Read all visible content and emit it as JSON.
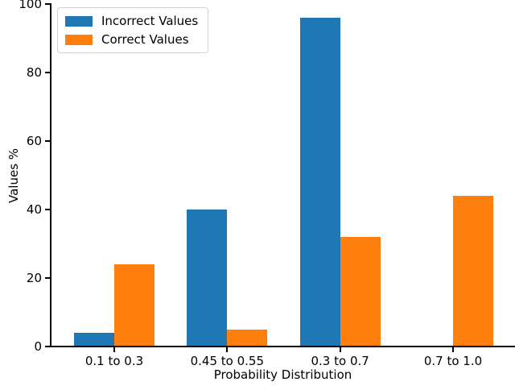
{
  "figure": {
    "background": "#ffffff",
    "text_color": "#000000",
    "axis_color": "#000000"
  },
  "chart_data": {
    "type": "bar",
    "title": "",
    "categories": [
      "0.1 to 0.3",
      "0.45 to 0.55",
      "0.3 to 0.7",
      "0.7 to 1.0"
    ],
    "series": [
      {
        "name": "Incorrect Values",
        "color": "#1f77b4",
        "values": [
          4,
          40,
          96,
          0
        ]
      },
      {
        "name": "Correct Values",
        "color": "#ff7f0e",
        "values": [
          24,
          5,
          32,
          44
        ]
      }
    ],
    "xlabel": "Probability Distribution",
    "ylabel": "Values %",
    "ylim": [
      0,
      100
    ],
    "yticks": [
      0,
      20,
      40,
      60,
      80,
      100
    ],
    "grid": false,
    "legend_position": "upper left"
  }
}
